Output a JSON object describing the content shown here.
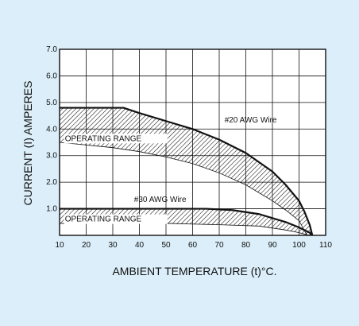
{
  "chart_data": {
    "type": "area",
    "xlabel": "AMBIENT TEMPERATURE (t)°C.",
    "ylabel": "CURRENT (I) AMPERES",
    "xlim": [
      10,
      110
    ],
    "ylim": [
      0,
      7
    ],
    "xticks": [
      "10",
      "20",
      "30",
      "40",
      "50",
      "60",
      "70",
      "80",
      "90",
      "100",
      "110"
    ],
    "yticks": [
      "1.0",
      "2.0",
      "3.0",
      "4.0",
      "5.0",
      "6.0",
      "7.0"
    ],
    "grid": true,
    "colors": {
      "background": "#dbeef9",
      "plot_background": "#ffffff",
      "ink": "#111111"
    },
    "series": [
      {
        "name": "#20 AWG Wire",
        "upper": {
          "x": [
            10,
            34,
            40,
            50,
            60,
            70,
            80,
            90,
            95,
            100,
            102,
            104,
            105
          ],
          "y": [
            4.8,
            4.8,
            4.6,
            4.3,
            4.0,
            3.6,
            3.1,
            2.4,
            1.9,
            1.3,
            0.9,
            0.4,
            0
          ]
        },
        "lower": {
          "x": [
            10,
            20,
            30,
            40,
            50,
            60,
            70,
            80,
            90,
            95,
            100,
            103
          ],
          "y": [
            3.5,
            3.4,
            3.3,
            3.15,
            2.95,
            2.7,
            2.35,
            1.9,
            1.3,
            0.95,
            0.55,
            0
          ]
        },
        "region_label": "OPERATING RANGE"
      },
      {
        "name": "#30 AWG Wire",
        "upper": {
          "x": [
            10,
            30,
            50,
            65,
            75,
            85,
            95,
            100,
            104,
            105
          ],
          "y": [
            1.0,
            1.0,
            1.0,
            1.0,
            0.95,
            0.8,
            0.5,
            0.3,
            0.1,
            0
          ]
        },
        "lower": {
          "x": [
            10,
            30,
            50,
            70,
            85,
            95,
            100,
            104
          ],
          "y": [
            0.45,
            0.45,
            0.45,
            0.4,
            0.35,
            0.2,
            0.1,
            0
          ]
        },
        "region_label": "OPERATING RANGE"
      }
    ]
  }
}
